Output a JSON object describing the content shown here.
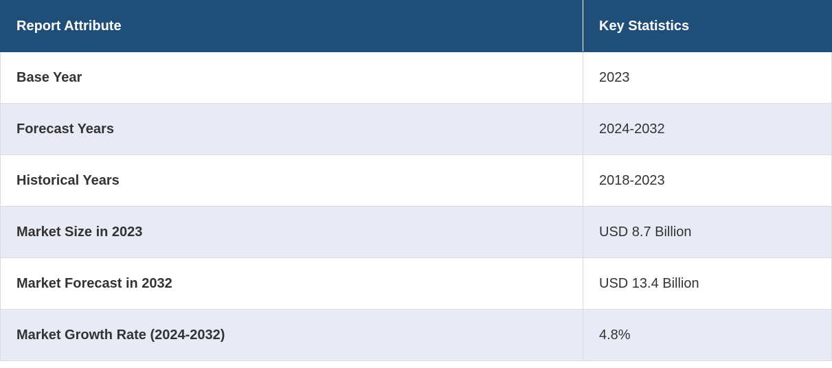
{
  "table": {
    "header": [
      "Report Attribute",
      "Key Statistics"
    ],
    "rows": [
      [
        "Base Year",
        "2023"
      ],
      [
        "Forecast Years",
        "2024-2032"
      ],
      [
        "Historical Years",
        "2018-2023"
      ],
      [
        "Market Size in 2023",
        "USD 8.7 Billion"
      ],
      [
        "Market Forecast in 2032",
        "USD 13.4 Billion"
      ],
      [
        "Market Growth Rate (2024-2032)",
        "4.8%"
      ]
    ]
  }
}
